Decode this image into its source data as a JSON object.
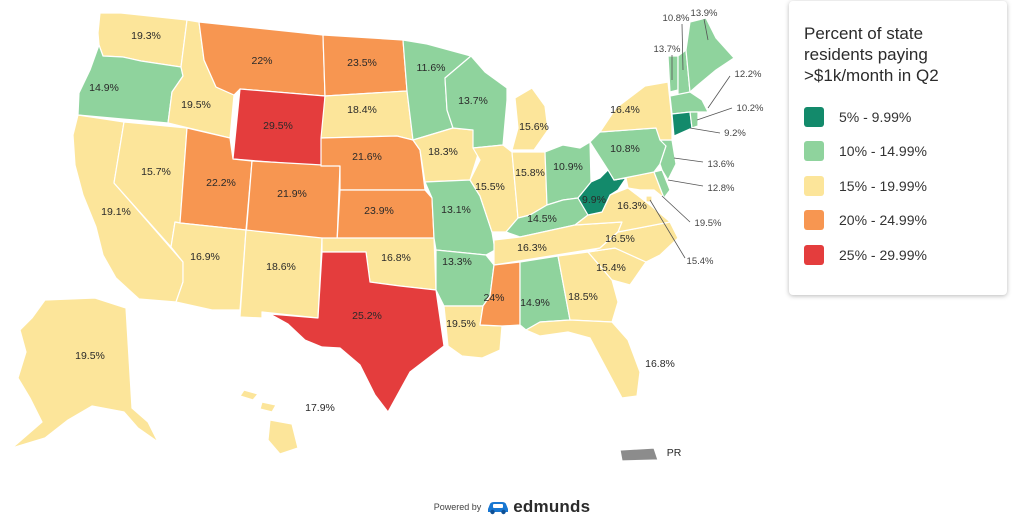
{
  "legend": {
    "title": "Percent of state residents paying >$1k/month in Q2",
    "bins": [
      {
        "label": "5% - 9.99%",
        "color": "#138a6b"
      },
      {
        "label": "10% - 14.99%",
        "color": "#8fd39d"
      },
      {
        "label": "15% - 19.99%",
        "color": "#fce59a"
      },
      {
        "label": "20% - 24.99%",
        "color": "#f79651"
      },
      {
        "label": "25% - 29.99%",
        "color": "#e43d3d"
      }
    ]
  },
  "states": {
    "WA": {
      "value": 19.3,
      "label": "19.3%",
      "bin": 2
    },
    "OR": {
      "value": 14.9,
      "label": "14.9%",
      "bin": 1
    },
    "CA": {
      "value": 19.1,
      "label": "19.1%",
      "bin": 2
    },
    "NV": {
      "value": 15.7,
      "label": "15.7%",
      "bin": 2
    },
    "ID": {
      "value": 19.5,
      "label": "19.5%",
      "bin": 2
    },
    "MT": {
      "value": 22,
      "label": "22%",
      "bin": 3
    },
    "WY": {
      "value": 29.5,
      "label": "29.5%",
      "bin": 4
    },
    "UT": {
      "value": 22.2,
      "label": "22.2%",
      "bin": 3
    },
    "AZ": {
      "value": 16.9,
      "label": "16.9%",
      "bin": 2
    },
    "CO": {
      "value": 21.9,
      "label": "21.9%",
      "bin": 3
    },
    "NM": {
      "value": 18.6,
      "label": "18.6%",
      "bin": 2
    },
    "ND": {
      "value": 23.5,
      "label": "23.5%",
      "bin": 3
    },
    "SD": {
      "value": 18.4,
      "label": "18.4%",
      "bin": 2
    },
    "NE": {
      "value": 21.6,
      "label": "21.6%",
      "bin": 3
    },
    "KS": {
      "value": 23.9,
      "label": "23.9%",
      "bin": 3
    },
    "OK": {
      "value": 16.8,
      "label": "16.8%",
      "bin": 2
    },
    "TX": {
      "value": 25.2,
      "label": "25.2%",
      "bin": 4
    },
    "MN": {
      "value": 11.6,
      "label": "11.6%",
      "bin": 1
    },
    "IA": {
      "value": 18.3,
      "label": "18.3%",
      "bin": 2
    },
    "MO": {
      "value": 13.1,
      "label": "13.1%",
      "bin": 1
    },
    "AR": {
      "value": 13.3,
      "label": "13.3%",
      "bin": 1
    },
    "LA": {
      "value": 19.5,
      "label": "19.5%",
      "bin": 2
    },
    "WI": {
      "value": 13.7,
      "label": "13.7%",
      "bin": 1
    },
    "IL": {
      "value": 15.5,
      "label": "15.5%",
      "bin": 2
    },
    "MI": {
      "value": 15.6,
      "label": "15.6%",
      "bin": 2
    },
    "IN": {
      "value": 15.8,
      "label": "15.8%",
      "bin": 2
    },
    "OH": {
      "value": 10.9,
      "label": "10.9%",
      "bin": 1
    },
    "KY": {
      "value": 14.5,
      "label": "14.5%",
      "bin": 1
    },
    "TN": {
      "value": 16.3,
      "label": "16.3%",
      "bin": 2
    },
    "MS": {
      "value": 24,
      "label": "24%",
      "bin": 3
    },
    "AL": {
      "value": 14.9,
      "label": "14.9%",
      "bin": 1
    },
    "GA": {
      "value": 18.5,
      "label": "18.5%",
      "bin": 2
    },
    "FL": {
      "value": 16.8,
      "label": "16.8%",
      "bin": 2
    },
    "SC": {
      "value": 15.4,
      "label": "15.4%",
      "bin": 2
    },
    "NC": {
      "value": 16.5,
      "label": "16.5%",
      "bin": 2
    },
    "VA": {
      "value": 16.3,
      "label": "16.3%",
      "bin": 2
    },
    "WV": {
      "value": 9.9,
      "label": "9.9%",
      "bin": 0
    },
    "PA": {
      "value": 10.8,
      "label": "10.8%",
      "bin": 1
    },
    "NY": {
      "value": 16.4,
      "label": "16.4%",
      "bin": 2
    },
    "VT": {
      "value": 13.7,
      "label": "13.7%",
      "bin": 1
    },
    "NH": {
      "value": 10.8,
      "label": "10.8%",
      "bin": 1
    },
    "ME": {
      "value": 13.9,
      "label": "13.9%",
      "bin": 1
    },
    "MA": {
      "value": 12.2,
      "label": "12.2%",
      "bin": 1
    },
    "RI": {
      "value": 10.2,
      "label": "10.2%",
      "bin": 1
    },
    "CT": {
      "value": 9.2,
      "label": "9.2%",
      "bin": 0
    },
    "NJ": {
      "value": 13.6,
      "label": "13.6%",
      "bin": 1
    },
    "DE": {
      "value": 12.8,
      "label": "12.8%",
      "bin": 1
    },
    "MD": {
      "value": 19.5,
      "label": "19.5%",
      "bin": 2
    },
    "DC": {
      "value": 15.4,
      "label": "15.4%",
      "bin": 2
    },
    "AK": {
      "value": 19.5,
      "label": "19.5%",
      "bin": 2
    },
    "HI": {
      "value": 17.9,
      "label": "17.9%",
      "bin": 2
    },
    "PR": {
      "value": null,
      "label": "PR",
      "color": "#8c8c8c"
    }
  },
  "footer": {
    "powered_by": "Powered by",
    "brand": "edmunds",
    "brand_color": "#1877d2"
  }
}
